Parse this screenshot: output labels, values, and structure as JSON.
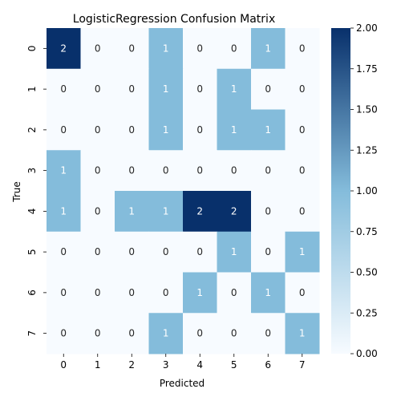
{
  "chart_data": {
    "type": "heatmap",
    "title": "LogisticRegression Confusion Matrix",
    "xlabel": "Predicted",
    "ylabel": "True",
    "x_categories": [
      "0",
      "1",
      "2",
      "3",
      "4",
      "5",
      "6",
      "7"
    ],
    "y_categories": [
      "0",
      "1",
      "2",
      "3",
      "4",
      "5",
      "6",
      "7"
    ],
    "values": [
      [
        2,
        0,
        0,
        1,
        0,
        0,
        1,
        0
      ],
      [
        0,
        0,
        0,
        1,
        0,
        1,
        0,
        0
      ],
      [
        0,
        0,
        0,
        1,
        0,
        1,
        1,
        0
      ],
      [
        1,
        0,
        0,
        0,
        0,
        0,
        0,
        0
      ],
      [
        1,
        0,
        1,
        1,
        2,
        2,
        0,
        0
      ],
      [
        0,
        0,
        0,
        0,
        0,
        1,
        0,
        1
      ],
      [
        0,
        0,
        0,
        0,
        1,
        0,
        1,
        0
      ],
      [
        0,
        0,
        0,
        1,
        0,
        0,
        0,
        1
      ]
    ],
    "colorbar": {
      "range": [
        0,
        2
      ],
      "ticks": [
        "0.00",
        "0.25",
        "0.50",
        "0.75",
        "1.00",
        "1.25",
        "1.50",
        "1.75",
        "2.00"
      ],
      "colormap": "Blues",
      "color_low": "#f7fbff",
      "color_mid": "#84bcdb",
      "color_high": "#08306b"
    },
    "annot_color_light": "#262626",
    "annot_color_dark": "#ffffff"
  }
}
